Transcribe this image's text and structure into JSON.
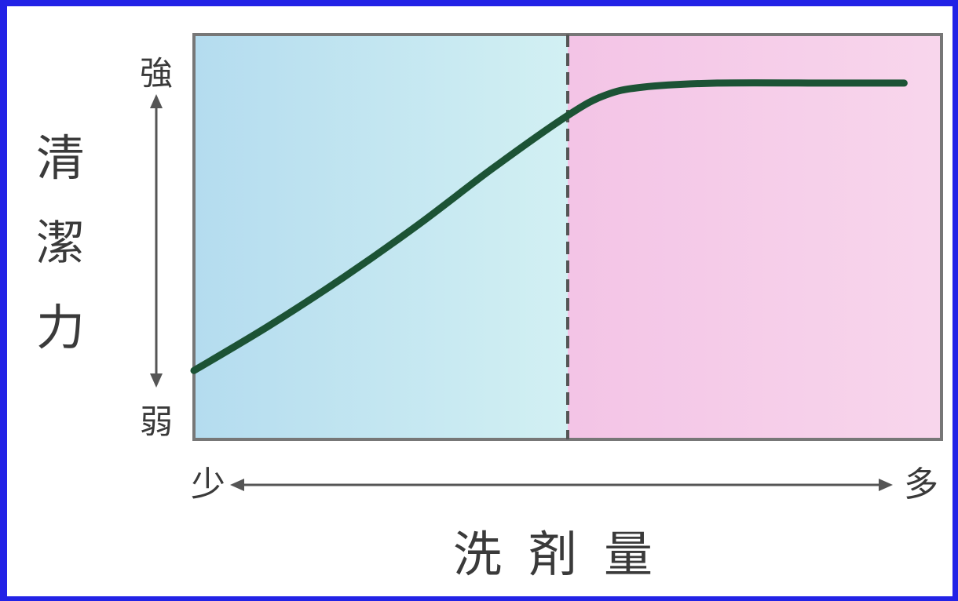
{
  "chart_data": {
    "type": "line",
    "title": "",
    "ylabel": "清潔力",
    "xlabel": "洗剤量",
    "y_axis_high": "強",
    "y_axis_low": "弱",
    "x_axis_low": "少",
    "x_axis_high": "多",
    "xlim": [
      0,
      1
    ],
    "ylim": [
      0,
      1
    ],
    "grid": false,
    "threshold_x": 0.5,
    "region_colors": {
      "left": "#c3e6f0",
      "right": "#f5cbe8"
    },
    "line_color": "#1c5335",
    "series": [
      {
        "points": [
          [
            0.0,
            0.17
          ],
          [
            0.1,
            0.28
          ],
          [
            0.2,
            0.4
          ],
          [
            0.3,
            0.53
          ],
          [
            0.4,
            0.67
          ],
          [
            0.5,
            0.8
          ],
          [
            0.55,
            0.85
          ],
          [
            0.6,
            0.87
          ],
          [
            0.7,
            0.88
          ],
          [
            0.85,
            0.88
          ],
          [
            0.95,
            0.88
          ]
        ]
      }
    ]
  }
}
